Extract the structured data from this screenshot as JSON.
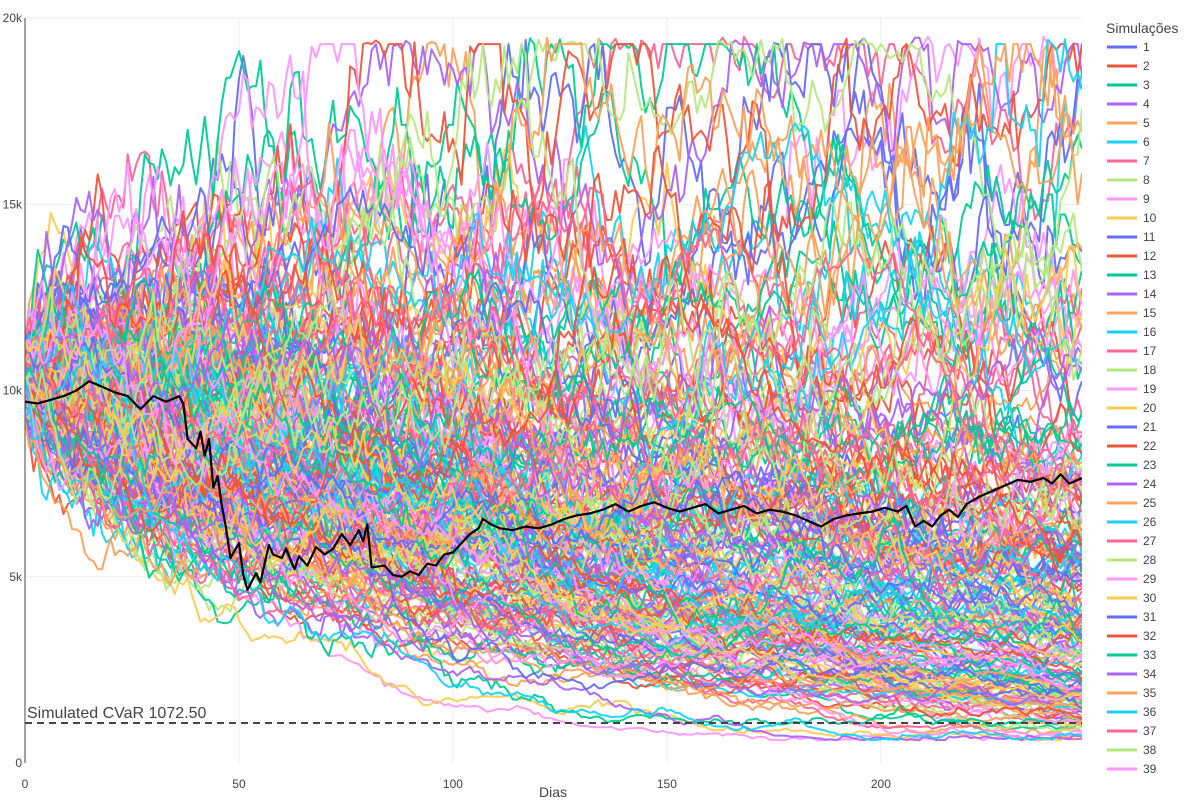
{
  "chart_data": {
    "type": "line",
    "title": "",
    "xlabel": "Dias",
    "ylabel": "",
    "xlim": [
      0,
      247
    ],
    "ylim": [
      0,
      20000
    ],
    "x_ticks": [
      0,
      50,
      100,
      150,
      200
    ],
    "x_tick_labels": [
      "0",
      "50",
      "100",
      "150",
      "200"
    ],
    "y_ticks": [
      0,
      5000,
      10000,
      15000,
      20000
    ],
    "y_tick_labels": [
      "0",
      "5k",
      "10k",
      "15k",
      "20k"
    ],
    "grid": true,
    "legend": {
      "title": "Simulações",
      "placement": "right"
    },
    "series_count": 39,
    "palette": [
      "#636efa",
      "#EF553B",
      "#00cc96",
      "#ab63fa",
      "#FFA15A",
      "#19d3f3",
      "#FF6692",
      "#B6E880",
      "#FF97FF",
      "#FECB52"
    ],
    "series": [
      {
        "name": "1",
        "color": "#636efa"
      },
      {
        "name": "2",
        "color": "#EF553B"
      },
      {
        "name": "3",
        "color": "#00cc96"
      },
      {
        "name": "4",
        "color": "#ab63fa"
      },
      {
        "name": "5",
        "color": "#FFA15A"
      },
      {
        "name": "6",
        "color": "#19d3f3"
      },
      {
        "name": "7",
        "color": "#FF6692"
      },
      {
        "name": "8",
        "color": "#B6E880"
      },
      {
        "name": "9",
        "color": "#FF97FF"
      },
      {
        "name": "10",
        "color": "#FECB52"
      },
      {
        "name": "11",
        "color": "#636efa"
      },
      {
        "name": "12",
        "color": "#EF553B"
      },
      {
        "name": "13",
        "color": "#00cc96"
      },
      {
        "name": "14",
        "color": "#ab63fa"
      },
      {
        "name": "15",
        "color": "#FFA15A"
      },
      {
        "name": "16",
        "color": "#19d3f3"
      },
      {
        "name": "17",
        "color": "#FF6692"
      },
      {
        "name": "18",
        "color": "#B6E880"
      },
      {
        "name": "19",
        "color": "#FF97FF"
      },
      {
        "name": "20",
        "color": "#FECB52"
      },
      {
        "name": "21",
        "color": "#636efa"
      },
      {
        "name": "22",
        "color": "#EF553B"
      },
      {
        "name": "23",
        "color": "#00cc96"
      },
      {
        "name": "24",
        "color": "#ab63fa"
      },
      {
        "name": "25",
        "color": "#FFA15A"
      },
      {
        "name": "26",
        "color": "#19d3f3"
      },
      {
        "name": "27",
        "color": "#FF6692"
      },
      {
        "name": "28",
        "color": "#B6E880"
      },
      {
        "name": "29",
        "color": "#FF97FF"
      },
      {
        "name": "30",
        "color": "#FECB52"
      },
      {
        "name": "31",
        "color": "#636efa"
      },
      {
        "name": "32",
        "color": "#EF553B"
      },
      {
        "name": "33",
        "color": "#00cc96"
      },
      {
        "name": "34",
        "color": "#ab63fa"
      },
      {
        "name": "35",
        "color": "#FFA15A"
      },
      {
        "name": "36",
        "color": "#19d3f3"
      },
      {
        "name": "37",
        "color": "#FF6692"
      },
      {
        "name": "38",
        "color": "#B6E880"
      },
      {
        "name": "39",
        "color": "#FF97FF"
      }
    ],
    "actual_path": {
      "color": "#000000",
      "points": [
        [
          0,
          9700
        ],
        [
          3,
          9650
        ],
        [
          6,
          9750
        ],
        [
          9,
          9850
        ],
        [
          12,
          10000
        ],
        [
          15,
          10250
        ],
        [
          18,
          10100
        ],
        [
          21,
          9950
        ],
        [
          24,
          9850
        ],
        [
          27,
          9500
        ],
        [
          30,
          9850
        ],
        [
          33,
          9700
        ],
        [
          36,
          9850
        ],
        [
          37,
          9650
        ],
        [
          38,
          8700
        ],
        [
          40,
          8450
        ],
        [
          41,
          8900
        ],
        [
          42,
          8250
        ],
        [
          43,
          8700
        ],
        [
          44,
          7400
        ],
        [
          45,
          7700
        ],
        [
          46,
          6900
        ],
        [
          47,
          6300
        ],
        [
          48,
          5500
        ],
        [
          50,
          5900
        ],
        [
          51,
          5050
        ],
        [
          52,
          4650
        ],
        [
          54,
          5100
        ],
        [
          55,
          4850
        ],
        [
          57,
          5850
        ],
        [
          58,
          5600
        ],
        [
          60,
          5500
        ],
        [
          61,
          5750
        ],
        [
          63,
          5200
        ],
        [
          64,
          5550
        ],
        [
          66,
          5300
        ],
        [
          68,
          5800
        ],
        [
          70,
          5600
        ],
        [
          72,
          5750
        ],
        [
          74,
          6150
        ],
        [
          76,
          5850
        ],
        [
          78,
          6250
        ],
        [
          79,
          5950
        ],
        [
          80,
          6400
        ],
        [
          81,
          5250
        ],
        [
          84,
          5300
        ],
        [
          86,
          5050
        ],
        [
          88,
          5000
        ],
        [
          90,
          5150
        ],
        [
          92,
          5050
        ],
        [
          94,
          5350
        ],
        [
          96,
          5300
        ],
        [
          98,
          5600
        ],
        [
          100,
          5650
        ],
        [
          102,
          5900
        ],
        [
          104,
          6150
        ],
        [
          106,
          6300
        ],
        [
          107,
          6550
        ],
        [
          109,
          6400
        ],
        [
          111,
          6300
        ],
        [
          114,
          6250
        ],
        [
          117,
          6350
        ],
        [
          120,
          6300
        ],
        [
          123,
          6400
        ],
        [
          126,
          6550
        ],
        [
          129,
          6650
        ],
        [
          132,
          6700
        ],
        [
          135,
          6800
        ],
        [
          138,
          6950
        ],
        [
          141,
          6750
        ],
        [
          144,
          6900
        ],
        [
          147,
          7000
        ],
        [
          150,
          6850
        ],
        [
          153,
          6750
        ],
        [
          156,
          6850
        ],
        [
          159,
          6950
        ],
        [
          162,
          6700
        ],
        [
          165,
          6800
        ],
        [
          168,
          6900
        ],
        [
          171,
          6700
        ],
        [
          174,
          6800
        ],
        [
          177,
          6750
        ],
        [
          180,
          6650
        ],
        [
          183,
          6500
        ],
        [
          186,
          6350
        ],
        [
          189,
          6550
        ],
        [
          192,
          6650
        ],
        [
          195,
          6700
        ],
        [
          198,
          6750
        ],
        [
          201,
          6850
        ],
        [
          204,
          6750
        ],
        [
          206,
          6900
        ],
        [
          208,
          6350
        ],
        [
          210,
          6500
        ],
        [
          212,
          6350
        ],
        [
          214,
          6650
        ],
        [
          216,
          6800
        ],
        [
          218,
          6600
        ],
        [
          220,
          6950
        ],
        [
          223,
          7150
        ],
        [
          226,
          7300
        ],
        [
          229,
          7450
        ],
        [
          232,
          7600
        ],
        [
          235,
          7550
        ],
        [
          238,
          7650
        ],
        [
          240,
          7500
        ],
        [
          242,
          7750
        ],
        [
          244,
          7500
        ],
        [
          247,
          7650
        ]
      ]
    },
    "reference_line": {
      "y": 1072.5,
      "style": "dashed",
      "color": "#444444"
    },
    "annotation": {
      "text": "Simulated CVaR 1072.50"
    }
  }
}
